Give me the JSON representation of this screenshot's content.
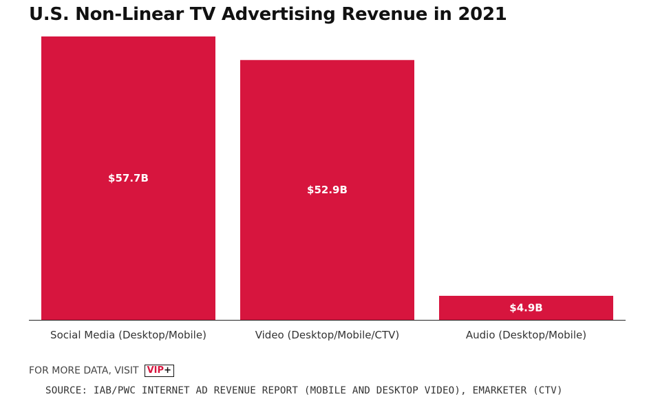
{
  "title": "U.S. Non-Linear TV Advertising Revenue in 2021",
  "colors": {
    "bar": "#d7153e",
    "axis": "#222222",
    "value_label": "#ffffff"
  },
  "chart_data": {
    "type": "bar",
    "title": "U.S. Non-Linear TV Advertising Revenue in 2021",
    "categories": [
      "Social Media (Desktop/Mobile)",
      "Video (Desktop/Mobile/CTV)",
      "Audio (Desktop/Mobile)"
    ],
    "values": [
      57.7,
      52.9,
      4.9
    ],
    "value_labels": [
      "$57.7B",
      "$52.9B",
      "$4.9B"
    ],
    "xlabel": "",
    "ylabel": "",
    "ylim": [
      0,
      57.7
    ],
    "grid": false,
    "legend": "none"
  },
  "footer": {
    "more_data_text": "FOR MORE DATA, VISIT",
    "vip_label": "VIP",
    "vip_plus": "+",
    "source_text": "SOURCE: IAB/PWC INTERNET AD REVENUE REPORT (MOBILE AND DESKTOP VIDEO), EMARKETER (CTV)"
  }
}
